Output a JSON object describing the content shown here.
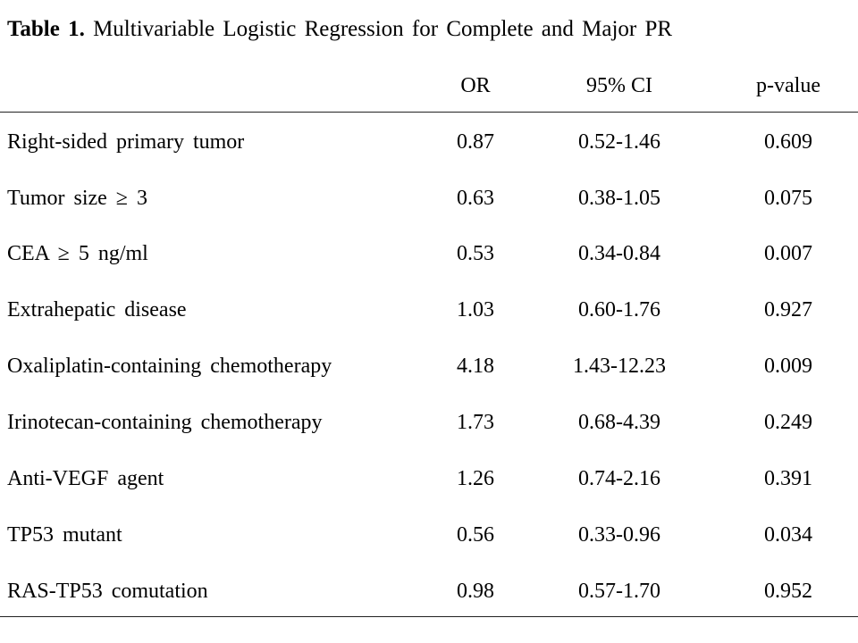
{
  "table": {
    "caption_label": "Table 1.",
    "caption_text": "Multivariable Logistic Regression for Complete and Major PR",
    "headers": {
      "variable": "",
      "or": "OR",
      "ci": "95% CI",
      "p": "p-value"
    },
    "rows": [
      {
        "variable": "Right-sided primary tumor",
        "or": "0.87",
        "ci": "0.52-1.46",
        "p": "0.609"
      },
      {
        "variable": "Tumor size ≥ 3",
        "or": "0.63",
        "ci": "0.38-1.05",
        "p": "0.075"
      },
      {
        "variable": "CEA ≥ 5 ng/ml",
        "or": "0.53",
        "ci": "0.34-0.84",
        "p": "0.007"
      },
      {
        "variable": "Extrahepatic disease",
        "or": "1.03",
        "ci": "0.60-1.76",
        "p": "0.927"
      },
      {
        "variable": "Oxaliplatin-containing chemotherapy",
        "or": "4.18",
        "ci": "1.43-12.23",
        "p": "0.009"
      },
      {
        "variable": "Irinotecan-containing chemotherapy",
        "or": "1.73",
        "ci": "0.68-4.39",
        "p": "0.249"
      },
      {
        "variable": "Anti-VEGF agent",
        "or": "1.26",
        "ci": "0.74-2.16",
        "p": "0.391"
      },
      {
        "variable": "TP53 mutant",
        "or": "0.56",
        "ci": "0.33-0.96",
        "p": "0.034"
      },
      {
        "variable": "RAS-TP53 comutation",
        "or": "0.98",
        "ci": "0.57-1.70",
        "p": "0.952"
      }
    ]
  }
}
